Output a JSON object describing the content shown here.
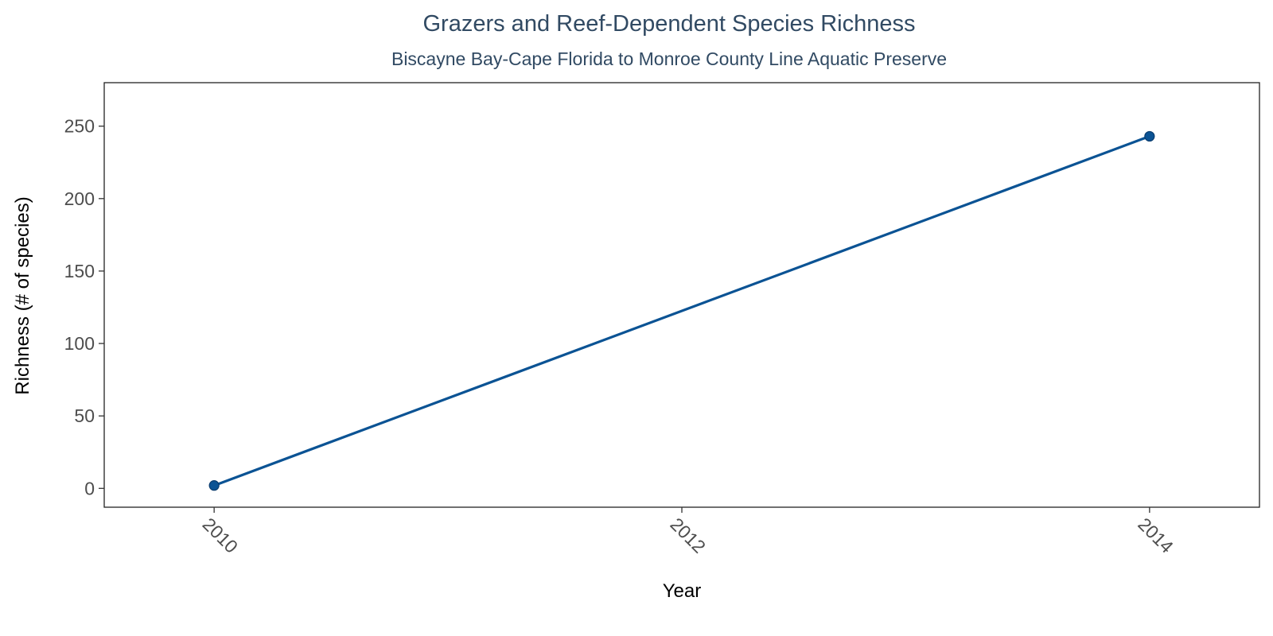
{
  "chart_data": {
    "type": "line",
    "title": "Grazers and Reef-Dependent Species Richness",
    "subtitle": "Biscayne Bay-Cape Florida to Monroe County Line Aquatic Preserve",
    "xlabel": "Year",
    "ylabel": "Richness (# of species)",
    "xlim": [
      2009.53,
      2014.47
    ],
    "ylim": [
      -13,
      280
    ],
    "xticks": [
      2010,
      2012,
      2014
    ],
    "yticks": [
      0,
      50,
      100,
      150,
      200,
      250
    ],
    "grid": false,
    "series": [
      {
        "x": [
          2010,
          2014
        ],
        "values": [
          2,
          243
        ],
        "color": "#0b5394"
      }
    ]
  }
}
